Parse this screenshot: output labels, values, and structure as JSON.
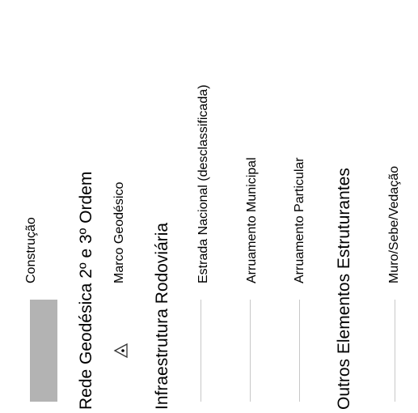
{
  "legend": {
    "construcao": "Construção",
    "rede_geodesica": "Rede Geodésica 2º e 3º Ordem",
    "marco_geodesico": "Marco Geodésico",
    "infraestrutura_rodoviaria": "Infraestrutura Rodoviária",
    "estrada_nacional": "Estrada Nacional (desclassificada)",
    "arruamento_municipal": "Arruamento Municipal",
    "arruamento_particular": "Arruamento Particular",
    "outros_elementos": "Outros Elementos Estruturantes",
    "muro": "Muro/Sebe/Vedação"
  },
  "colors": {
    "construcao_fill": "#b3b3b3",
    "line_symbol": "#c8c8c8"
  },
  "icons": {
    "marco": "triangle-dot-icon"
  }
}
